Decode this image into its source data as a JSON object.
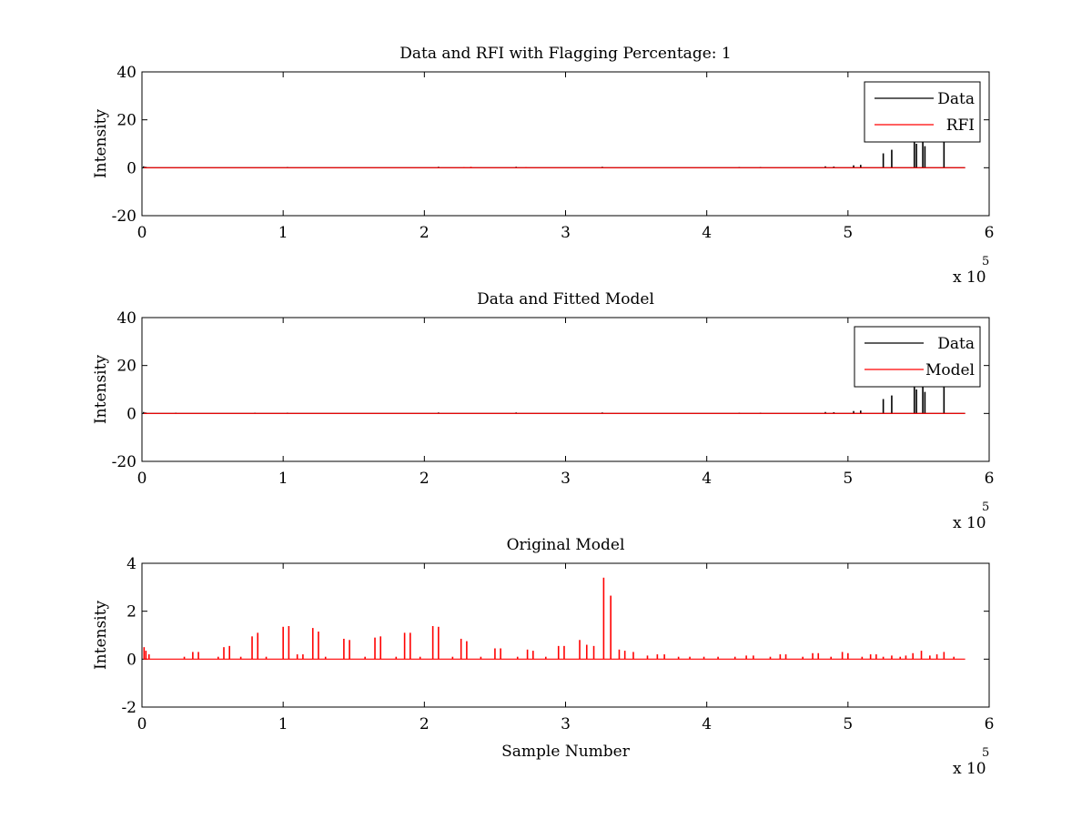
{
  "chart_data": [
    {
      "type": "line",
      "title": "Data and RFI with Flagging Percentage: 1",
      "xlabel": "",
      "ylabel": "Intensity",
      "xlim": [
        0,
        600000
      ],
      "ylim": [
        -20,
        40
      ],
      "xticks": [
        0,
        1,
        2,
        3,
        4,
        5,
        6
      ],
      "yticks": [
        -20,
        0,
        20,
        40
      ],
      "x_exponent_label": "x 10",
      "x_exponent": "5",
      "grid": false,
      "legend": {
        "position": "top-right",
        "entries": [
          "Data",
          "RFI"
        ]
      },
      "series": [
        {
          "name": "Data",
          "color": "#000000",
          "baseline": 0,
          "x_range": [
            0,
            583000
          ],
          "spikes": [
            [
              1200,
              0.6
            ],
            [
              2500,
              0.4
            ],
            [
              103000,
              0.3
            ],
            [
              210000,
              0.4
            ],
            [
              265000,
              0.4
            ],
            [
              326000,
              0.4
            ],
            [
              423000,
              0.3
            ],
            [
              438000,
              0.3
            ],
            [
              484000,
              0.6
            ],
            [
              490000,
              0.5
            ],
            [
              504000,
              1.0
            ],
            [
              509000,
              1.2
            ],
            [
              525000,
              6.0
            ],
            [
              531000,
              7.5
            ],
            [
              547000,
              12
            ],
            [
              548500,
              10
            ],
            [
              553000,
              11
            ],
            [
              554500,
              9
            ],
            [
              568000,
              12
            ]
          ]
        },
        {
          "name": "RFI",
          "color": "#ff0000",
          "baseline": 0,
          "x_range": [
            0,
            583000
          ],
          "spikes": [
            [
              228000,
              0.3
            ],
            [
              233000,
              0.4
            ],
            [
              272000,
              0.3
            ]
          ]
        }
      ]
    },
    {
      "type": "line",
      "title": "Data and Fitted Model",
      "xlabel": "",
      "ylabel": "Intensity",
      "xlim": [
        0,
        600000
      ],
      "ylim": [
        -20,
        40
      ],
      "xticks": [
        0,
        1,
        2,
        3,
        4,
        5,
        6
      ],
      "yticks": [
        -20,
        0,
        20,
        40
      ],
      "x_exponent_label": "x 10",
      "x_exponent": "5",
      "grid": false,
      "legend": {
        "position": "top-right",
        "entries": [
          "Data",
          "Model"
        ]
      },
      "series": [
        {
          "name": "Data",
          "color": "#000000",
          "baseline": 0,
          "x_range": [
            0,
            583000
          ],
          "spikes": [
            [
              1200,
              0.6
            ],
            [
              2500,
              0.4
            ],
            [
              24000,
              0.3
            ],
            [
              80000,
              0.3
            ],
            [
              103000,
              0.3
            ],
            [
              210000,
              0.4
            ],
            [
              265000,
              0.4
            ],
            [
              326000,
              0.4
            ],
            [
              423000,
              0.3
            ],
            [
              438000,
              0.3
            ],
            [
              484000,
              0.6
            ],
            [
              490000,
              0.5
            ],
            [
              504000,
              1.0
            ],
            [
              509000,
              1.2
            ],
            [
              525000,
              6.0
            ],
            [
              531000,
              7.5
            ],
            [
              547000,
              12
            ],
            [
              548500,
              10
            ],
            [
              553000,
              11
            ],
            [
              554500,
              9
            ],
            [
              568000,
              12
            ]
          ]
        },
        {
          "name": "Model",
          "color": "#ff0000",
          "baseline": 0,
          "x_range": [
            0,
            583000
          ],
          "spikes": []
        }
      ]
    },
    {
      "type": "line",
      "title": "Original Model",
      "xlabel": "Sample Number",
      "ylabel": "Intensity",
      "xlim": [
        0,
        600000
      ],
      "ylim": [
        -2,
        4
      ],
      "xticks": [
        0,
        1,
        2,
        3,
        4,
        5,
        6
      ],
      "yticks": [
        -2,
        0,
        2,
        4
      ],
      "x_exponent_label": "x 10",
      "x_exponent": "5",
      "grid": false,
      "series": [
        {
          "name": "",
          "color": "#ff0000",
          "baseline": 0,
          "x_range": [
            0,
            583000
          ],
          "spikes": [
            [
              1500,
              0.5
            ],
            [
              2800,
              0.35
            ],
            [
              5000,
              0.2
            ],
            [
              30000,
              0.1
            ],
            [
              36000,
              0.3
            ],
            [
              40000,
              0.3
            ],
            [
              54000,
              0.1
            ],
            [
              58000,
              0.5
            ],
            [
              62000,
              0.55
            ],
            [
              70000,
              0.1
            ],
            [
              78000,
              0.95
            ],
            [
              82000,
              1.1
            ],
            [
              88000,
              0.1
            ],
            [
              100000,
              1.35
            ],
            [
              104000,
              1.38
            ],
            [
              110000,
              0.2
            ],
            [
              114000,
              0.2
            ],
            [
              121000,
              1.3
            ],
            [
              125000,
              1.15
            ],
            [
              130000,
              0.1
            ],
            [
              143000,
              0.85
            ],
            [
              147000,
              0.8
            ],
            [
              158000,
              0.1
            ],
            [
              165000,
              0.9
            ],
            [
              169000,
              0.95
            ],
            [
              180000,
              0.1
            ],
            [
              186000,
              1.1
            ],
            [
              190000,
              1.1
            ],
            [
              197000,
              0.1
            ],
            [
              206000,
              1.38
            ],
            [
              210000,
              1.35
            ],
            [
              220000,
              0.1
            ],
            [
              226000,
              0.85
            ],
            [
              230000,
              0.75
            ],
            [
              240000,
              0.1
            ],
            [
              250000,
              0.45
            ],
            [
              254000,
              0.45
            ],
            [
              266000,
              0.1
            ],
            [
              273000,
              0.4
            ],
            [
              277000,
              0.35
            ],
            [
              286000,
              0.1
            ],
            [
              295000,
              0.55
            ],
            [
              299000,
              0.55
            ],
            [
              310000,
              0.8
            ],
            [
              315000,
              0.6
            ],
            [
              320000,
              0.55
            ],
            [
              327000,
              3.4
            ],
            [
              332000,
              2.65
            ],
            [
              338000,
              0.4
            ],
            [
              342000,
              0.35
            ],
            [
              348000,
              0.3
            ],
            [
              358000,
              0.15
            ],
            [
              365000,
              0.2
            ],
            [
              370000,
              0.2
            ],
            [
              380000,
              0.1
            ],
            [
              388000,
              0.1
            ],
            [
              398000,
              0.1
            ],
            [
              408000,
              0.1
            ],
            [
              420000,
              0.1
            ],
            [
              428000,
              0.15
            ],
            [
              433000,
              0.15
            ],
            [
              445000,
              0.1
            ],
            [
              452000,
              0.2
            ],
            [
              456000,
              0.2
            ],
            [
              468000,
              0.1
            ],
            [
              475000,
              0.25
            ],
            [
              479000,
              0.25
            ],
            [
              488000,
              0.1
            ],
            [
              496000,
              0.3
            ],
            [
              500000,
              0.25
            ],
            [
              510000,
              0.1
            ],
            [
              516000,
              0.2
            ],
            [
              520000,
              0.2
            ],
            [
              525000,
              0.1
            ],
            [
              531000,
              0.15
            ],
            [
              537000,
              0.1
            ],
            [
              541000,
              0.15
            ],
            [
              546000,
              0.25
            ],
            [
              552000,
              0.35
            ],
            [
              558000,
              0.15
            ],
            [
              563000,
              0.2
            ],
            [
              568000,
              0.3
            ],
            [
              575000,
              0.1
            ]
          ]
        }
      ]
    }
  ]
}
